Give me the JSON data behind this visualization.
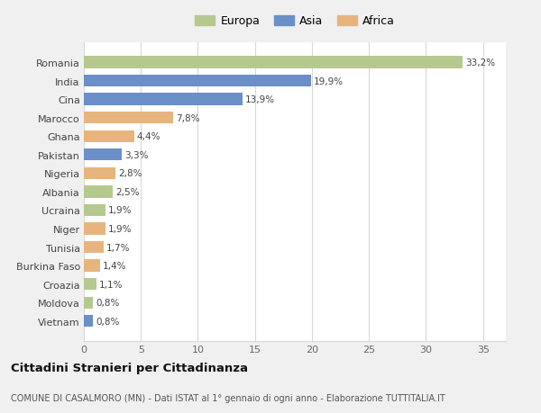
{
  "countries": [
    "Romania",
    "India",
    "Cina",
    "Marocco",
    "Ghana",
    "Pakistan",
    "Nigeria",
    "Albania",
    "Ucraina",
    "Niger",
    "Tunisia",
    "Burkina Faso",
    "Croazia",
    "Moldova",
    "Vietnam"
  ],
  "values": [
    33.2,
    19.9,
    13.9,
    7.8,
    4.4,
    3.3,
    2.8,
    2.5,
    1.9,
    1.9,
    1.7,
    1.4,
    1.1,
    0.8,
    0.8
  ],
  "labels": [
    "33,2%",
    "19,9%",
    "13,9%",
    "7,8%",
    "4,4%",
    "3,3%",
    "2,8%",
    "2,5%",
    "1,9%",
    "1,9%",
    "1,7%",
    "1,4%",
    "1,1%",
    "0,8%",
    "0,8%"
  ],
  "continents": [
    "Europa",
    "Asia",
    "Asia",
    "Africa",
    "Africa",
    "Asia",
    "Africa",
    "Europa",
    "Europa",
    "Africa",
    "Africa",
    "Africa",
    "Europa",
    "Europa",
    "Asia"
  ],
  "colors": {
    "Europa": "#b5c98e",
    "Asia": "#6b8fc7",
    "Africa": "#e8b47e"
  },
  "title": "Cittadini Stranieri per Cittadinanza",
  "subtitle": "COMUNE DI CASALMORO (MN) - Dati ISTAT al 1° gennaio di ogni anno - Elaborazione TUTTITALIA.IT",
  "xlim": [
    0,
    37
  ],
  "xticks": [
    0,
    5,
    10,
    15,
    20,
    25,
    30,
    35
  ],
  "background_color": "#f0f0f0",
  "bar_background": "#ffffff",
  "grid_color": "#d8d8d8"
}
